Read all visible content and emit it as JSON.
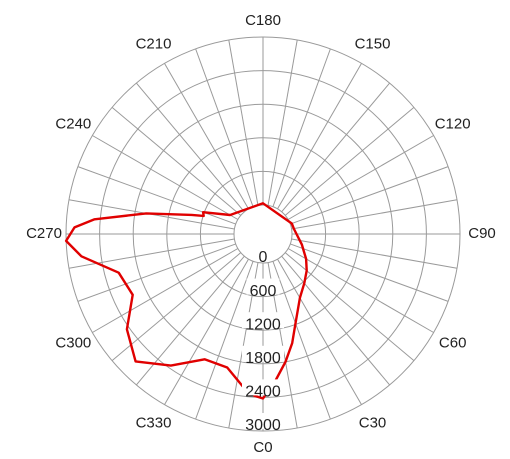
{
  "chart_data": {
    "type": "polar-line",
    "title": "",
    "angle_unit": "degrees",
    "angle_zero_position": "bottom",
    "angle_direction": "counterclockwise",
    "angle_tick_step": 10,
    "angle_labels": [
      {
        "angle": 0,
        "label": "C0"
      },
      {
        "angle": 30,
        "label": "C30"
      },
      {
        "angle": 60,
        "label": "C60"
      },
      {
        "angle": 90,
        "label": "C90"
      },
      {
        "angle": 120,
        "label": "C120"
      },
      {
        "angle": 150,
        "label": "C150"
      },
      {
        "angle": 180,
        "label": "C180"
      },
      {
        "angle": 210,
        "label": "C210"
      },
      {
        "angle": 240,
        "label": "C240"
      },
      {
        "angle": 270,
        "label": "C270"
      },
      {
        "angle": 300,
        "label": "C300"
      },
      {
        "angle": 330,
        "label": "C330"
      }
    ],
    "radial_ticks": [
      0,
      600,
      1200,
      1800,
      2400,
      3000
    ],
    "radial_tick_labels": [
      "0",
      "600",
      "1200",
      "1800",
      "2400",
      "3000"
    ],
    "radial_range": [
      0,
      3000
    ],
    "grid": true,
    "series": [
      {
        "color": "#e00000",
        "points": [
          {
            "angle": 0,
            "r": 2420
          },
          {
            "angle": 5,
            "r": 2100
          },
          {
            "angle": 10,
            "r": 1800
          },
          {
            "angle": 15,
            "r": 1500
          },
          {
            "angle": 20,
            "r": 1180
          },
          {
            "angle": 30,
            "r": 800
          },
          {
            "angle": 40,
            "r": 630
          },
          {
            "angle": 50,
            "r": 500
          },
          {
            "angle": 60,
            "r": 370
          },
          {
            "angle": 75,
            "r": 200
          },
          {
            "angle": 90,
            "r": 80
          },
          {
            "angle": 100,
            "r": 40
          },
          {
            "angle": 110,
            "r": 30
          },
          {
            "angle": 180,
            "r": 30
          },
          {
            "angle": 240,
            "r": 160
          },
          {
            "angle": 250,
            "r": 620
          },
          {
            "angle": 253,
            "r": 590
          },
          {
            "angle": 255,
            "r": 800
          },
          {
            "angle": 260,
            "r": 1600
          },
          {
            "angle": 265,
            "r": 2500
          },
          {
            "angle": 268,
            "r": 2850
          },
          {
            "angle": 272,
            "r": 3000
          },
          {
            "angle": 277,
            "r": 2750
          },
          {
            "angle": 285,
            "r": 2150
          },
          {
            "angle": 295,
            "r": 2050
          },
          {
            "angle": 305,
            "r": 2450
          },
          {
            "angle": 315,
            "r": 2700
          },
          {
            "angle": 325,
            "r": 2350
          },
          {
            "angle": 335,
            "r": 1950
          },
          {
            "angle": 345,
            "r": 1950
          },
          {
            "angle": 355,
            "r": 2350
          },
          {
            "angle": 360,
            "r": 2420
          }
        ]
      }
    ]
  }
}
